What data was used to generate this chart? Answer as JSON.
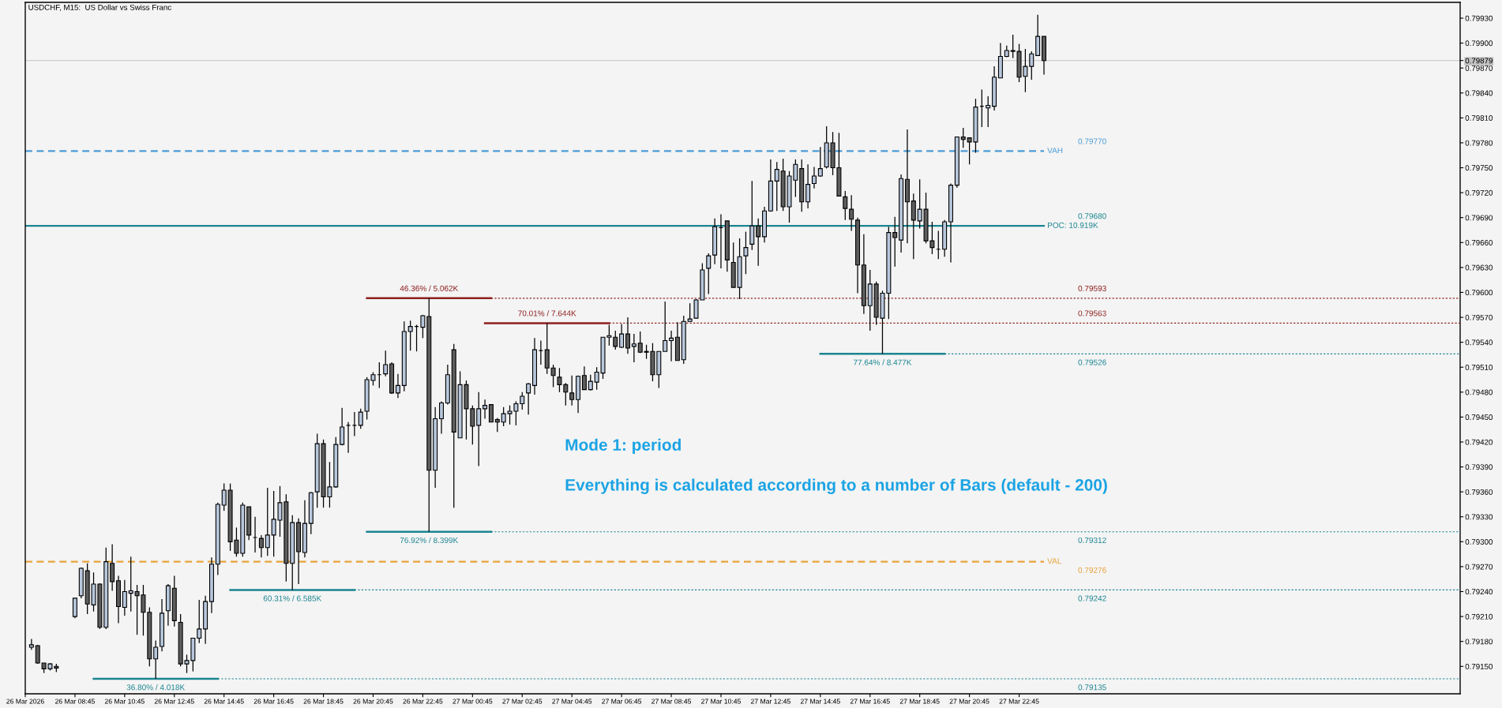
{
  "chart_data": {
    "type": "candlestick",
    "title": "USDCHF, M15:  US Dollar vs Swiss Franc",
    "x": [
      "2026-03-26T07:00",
      "2026-03-26T07:15",
      "2026-03-26T07:30",
      "2026-03-26T07:45",
      "2026-03-26T08:00",
      "2026-03-26T08:45",
      "2026-03-26T09:00",
      "2026-03-26T09:15",
      "2026-03-26T09:30",
      "2026-03-26T09:45",
      "2026-03-26T10:00",
      "2026-03-26T10:15",
      "2026-03-26T10:30",
      "2026-03-26T10:45",
      "2026-03-26T11:00",
      "2026-03-26T11:15",
      "2026-03-26T11:30",
      "2026-03-26T11:45",
      "2026-03-26T12:00",
      "2026-03-26T12:15",
      "2026-03-26T12:30",
      "2026-03-26T12:45",
      "2026-03-26T13:00",
      "2026-03-26T13:15",
      "2026-03-26T13:30",
      "2026-03-26T13:45",
      "2026-03-26T14:00",
      "2026-03-26T14:15",
      "2026-03-26T14:30",
      "2026-03-26T14:45",
      "2026-03-26T15:00",
      "2026-03-26T15:15",
      "2026-03-26T15:30",
      "2026-03-26T15:45",
      "2026-03-26T16:00",
      "2026-03-26T16:15",
      "2026-03-26T16:30",
      "2026-03-26T16:45",
      "2026-03-26T17:00",
      "2026-03-26T17:15",
      "2026-03-26T17:30",
      "2026-03-26T17:45",
      "2026-03-26T18:00",
      "2026-03-26T18:15",
      "2026-03-26T18:30",
      "2026-03-26T18:45",
      "2026-03-26T19:00",
      "2026-03-26T19:15",
      "2026-03-26T19:30",
      "2026-03-26T19:45",
      "2026-03-26T20:00",
      "2026-03-26T20:15",
      "2026-03-26T20:30",
      "2026-03-26T20:45",
      "2026-03-26T21:00",
      "2026-03-26T21:15",
      "2026-03-26T21:30",
      "2026-03-26T21:45",
      "2026-03-26T22:00",
      "2026-03-26T22:15",
      "2026-03-26T22:30",
      "2026-03-26T22:45",
      "2026-03-26T23:00",
      "2026-03-26T23:15",
      "2026-03-26T23:30",
      "2026-03-26T23:45",
      "2026-03-27T00:00",
      "2026-03-27T00:15",
      "2026-03-27T00:30",
      "2026-03-27T00:45",
      "2026-03-27T01:00",
      "2026-03-27T01:15",
      "2026-03-27T01:30",
      "2026-03-27T01:45",
      "2026-03-27T02:00",
      "2026-03-27T02:15",
      "2026-03-27T02:30",
      "2026-03-27T02:45",
      "2026-03-27T03:00",
      "2026-03-27T03:15",
      "2026-03-27T03:30",
      "2026-03-27T03:45",
      "2026-03-27T04:00",
      "2026-03-27T04:15",
      "2026-03-27T04:30",
      "2026-03-27T04:45",
      "2026-03-27T05:00",
      "2026-03-27T05:15",
      "2026-03-27T05:30",
      "2026-03-27T05:45",
      "2026-03-27T06:00",
      "2026-03-27T06:15",
      "2026-03-27T06:30",
      "2026-03-27T06:45",
      "2026-03-27T07:00",
      "2026-03-27T07:15",
      "2026-03-27T07:30",
      "2026-03-27T07:45",
      "2026-03-27T08:00",
      "2026-03-27T08:15",
      "2026-03-27T08:30",
      "2026-03-27T08:45",
      "2026-03-27T09:00",
      "2026-03-27T09:15",
      "2026-03-27T09:30",
      "2026-03-27T09:45",
      "2026-03-27T10:00",
      "2026-03-27T10:15",
      "2026-03-27T10:30",
      "2026-03-27T10:45",
      "2026-03-27T11:00",
      "2026-03-27T11:15",
      "2026-03-27T11:30",
      "2026-03-27T11:45",
      "2026-03-27T12:00",
      "2026-03-27T12:15",
      "2026-03-27T12:30",
      "2026-03-27T12:45",
      "2026-03-27T13:00",
      "2026-03-27T13:15",
      "2026-03-27T13:30",
      "2026-03-27T13:45",
      "2026-03-27T14:00",
      "2026-03-27T14:15",
      "2026-03-27T14:30",
      "2026-03-27T14:45",
      "2026-03-27T15:00",
      "2026-03-27T15:15",
      "2026-03-27T15:30",
      "2026-03-27T15:45",
      "2026-03-27T16:00",
      "2026-03-27T16:15",
      "2026-03-27T16:30",
      "2026-03-27T16:45",
      "2026-03-27T17:00",
      "2026-03-27T17:15",
      "2026-03-27T17:30",
      "2026-03-27T17:45",
      "2026-03-27T18:00",
      "2026-03-27T18:15",
      "2026-03-27T18:30",
      "2026-03-27T18:45",
      "2026-03-27T19:00",
      "2026-03-27T19:15",
      "2026-03-27T19:30",
      "2026-03-27T19:45",
      "2026-03-27T20:00",
      "2026-03-27T20:15",
      "2026-03-27T20:30",
      "2026-03-27T20:45",
      "2026-03-27T21:00",
      "2026-03-27T21:15",
      "2026-03-27T21:30",
      "2026-03-27T21:45",
      "2026-03-27T22:00",
      "2026-03-27T22:15",
      "2026-03-27T22:30",
      "2026-03-27T22:45",
      "2026-03-27T23:00",
      "2026-03-27T23:15",
      "2026-03-27T23:30",
      "2026-03-27T23:45"
    ],
    "ohlc": [
      [
        0.79173,
        0.79183,
        0.7917,
        0.79176
      ],
      [
        0.79175,
        0.79176,
        0.79153,
        0.79154
      ],
      [
        0.79154,
        0.79154,
        0.79142,
        0.79147
      ],
      [
        0.79147,
        0.79154,
        0.79145,
        0.79153
      ],
      [
        0.7915,
        0.79153,
        0.79143,
        0.79148
      ],
      [
        0.7921,
        0.79232,
        0.79208,
        0.79232
      ],
      [
        0.79235,
        0.79269,
        0.79232,
        0.79268
      ],
      [
        0.79265,
        0.79274,
        0.79213,
        0.79225
      ],
      [
        0.79224,
        0.79263,
        0.79216,
        0.79249
      ],
      [
        0.79249,
        0.7925,
        0.79195,
        0.79197
      ],
      [
        0.79197,
        0.79293,
        0.79195,
        0.79276
      ],
      [
        0.79274,
        0.79297,
        0.79241,
        0.79252
      ],
      [
        0.79253,
        0.79259,
        0.79202,
        0.79222
      ],
      [
        0.79221,
        0.79254,
        0.79211,
        0.7924
      ],
      [
        0.79238,
        0.79282,
        0.79216,
        0.79241
      ],
      [
        0.7924,
        0.79248,
        0.79188,
        0.79235
      ],
      [
        0.79236,
        0.79248,
        0.79187,
        0.79215
      ],
      [
        0.79215,
        0.79221,
        0.7915,
        0.79159
      ],
      [
        0.79159,
        0.79181,
        0.79135,
        0.79173
      ],
      [
        0.79174,
        0.79231,
        0.79168,
        0.79214
      ],
      [
        0.79217,
        0.79249,
        0.79199,
        0.79247
      ],
      [
        0.79244,
        0.79259,
        0.79198,
        0.79205
      ],
      [
        0.79203,
        0.79213,
        0.7915,
        0.79153
      ],
      [
        0.79153,
        0.79164,
        0.79142,
        0.79157
      ],
      [
        0.79157,
        0.79184,
        0.79144,
        0.79184
      ],
      [
        0.79184,
        0.7923,
        0.79178,
        0.79195
      ],
      [
        0.79195,
        0.79235,
        0.79177,
        0.79228
      ],
      [
        0.79228,
        0.79281,
        0.79214,
        0.79273
      ],
      [
        0.79273,
        0.79347,
        0.7926,
        0.79345
      ],
      [
        0.79344,
        0.7937,
        0.79337,
        0.79362
      ],
      [
        0.79362,
        0.7937,
        0.79289,
        0.793
      ],
      [
        0.79302,
        0.79317,
        0.79282,
        0.79286
      ],
      [
        0.79286,
        0.79347,
        0.79282,
        0.79344
      ],
      [
        0.79342,
        0.79342,
        0.79302,
        0.79308
      ],
      [
        0.79305,
        0.7933,
        0.79287,
        0.79305
      ],
      [
        0.79304,
        0.79308,
        0.79281,
        0.79293
      ],
      [
        0.79293,
        0.79365,
        0.79283,
        0.79308
      ],
      [
        0.79308,
        0.79361,
        0.79282,
        0.79327
      ],
      [
        0.79326,
        0.79367,
        0.79306,
        0.79347
      ],
      [
        0.79348,
        0.79357,
        0.79252,
        0.79274
      ],
      [
        0.79274,
        0.79332,
        0.79242,
        0.79323
      ],
      [
        0.79323,
        0.79328,
        0.79249,
        0.79288
      ],
      [
        0.79287,
        0.7935,
        0.79281,
        0.79322
      ],
      [
        0.79322,
        0.7936,
        0.79309,
        0.79359
      ],
      [
        0.7936,
        0.7943,
        0.79341,
        0.79418
      ],
      [
        0.79418,
        0.79423,
        0.79341,
        0.79354
      ],
      [
        0.79354,
        0.79396,
        0.79341,
        0.79366
      ],
      [
        0.79366,
        0.79426,
        0.79365,
        0.79417
      ],
      [
        0.79417,
        0.79461,
        0.79416,
        0.79438
      ],
      [
        0.7944,
        0.79444,
        0.79407,
        0.7944
      ],
      [
        0.7944,
        0.79456,
        0.79427,
        0.7944
      ],
      [
        0.7944,
        0.7946,
        0.79436,
        0.79456
      ],
      [
        0.79457,
        0.79498,
        0.79447,
        0.79495
      ],
      [
        0.79494,
        0.79504,
        0.79488,
        0.79501
      ],
      [
        0.79501,
        0.79516,
        0.79485,
        0.79501
      ],
      [
        0.79502,
        0.7953,
        0.79499,
        0.79513
      ],
      [
        0.79514,
        0.79516,
        0.79478,
        0.79479
      ],
      [
        0.79479,
        0.79502,
        0.79473,
        0.79488
      ],
      [
        0.79488,
        0.79565,
        0.79481,
        0.79553
      ],
      [
        0.79553,
        0.79566,
        0.7953,
        0.79559
      ],
      [
        0.79559,
        0.79561,
        0.79529,
        0.79559
      ],
      [
        0.79558,
        0.79573,
        0.79545,
        0.79572
      ],
      [
        0.79571,
        0.79593,
        0.79312,
        0.79386
      ],
      [
        0.79386,
        0.79462,
        0.79365,
        0.79448
      ],
      [
        0.79448,
        0.79469,
        0.7943,
        0.79467
      ],
      [
        0.79467,
        0.79513,
        0.79465,
        0.79501
      ],
      [
        0.79531,
        0.79538,
        0.79341,
        0.79432
      ],
      [
        0.79425,
        0.79505,
        0.79425,
        0.79489
      ],
      [
        0.79489,
        0.79494,
        0.79423,
        0.7946
      ],
      [
        0.7946,
        0.79464,
        0.79417,
        0.79439
      ],
      [
        0.7944,
        0.7948,
        0.79391,
        0.7946
      ],
      [
        0.7946,
        0.79471,
        0.79448,
        0.79464
      ],
      [
        0.79465,
        0.79465,
        0.79444,
        0.79444
      ],
      [
        0.79447,
        0.79449,
        0.79432,
        0.79444
      ],
      [
        0.79444,
        0.79462,
        0.79439,
        0.79454
      ],
      [
        0.79454,
        0.79464,
        0.79441,
        0.79457
      ],
      [
        0.79457,
        0.79469,
        0.7944,
        0.79466
      ],
      [
        0.79466,
        0.7948,
        0.79459,
        0.79475
      ],
      [
        0.79479,
        0.79491,
        0.79453,
        0.7949
      ],
      [
        0.79488,
        0.79545,
        0.79477,
        0.79531
      ],
      [
        0.7953,
        0.79542,
        0.79513,
        0.7953
      ],
      [
        0.79531,
        0.79563,
        0.79502,
        0.79509
      ],
      [
        0.79509,
        0.79513,
        0.79486,
        0.795
      ],
      [
        0.79498,
        0.79509,
        0.7948,
        0.79489
      ],
      [
        0.79489,
        0.79491,
        0.79464,
        0.7948
      ],
      [
        0.79479,
        0.795,
        0.79464,
        0.79471
      ],
      [
        0.79471,
        0.795,
        0.79455,
        0.79499
      ],
      [
        0.795,
        0.79511,
        0.79483,
        0.79483
      ],
      [
        0.79483,
        0.79501,
        0.79482,
        0.79493
      ],
      [
        0.79492,
        0.7951,
        0.79483,
        0.79504
      ],
      [
        0.79503,
        0.79546,
        0.79496,
        0.79546
      ],
      [
        0.79546,
        0.79561,
        0.79536,
        0.79548
      ],
      [
        0.79546,
        0.79554,
        0.79531,
        0.79535
      ],
      [
        0.79534,
        0.79562,
        0.79533,
        0.7955
      ],
      [
        0.7955,
        0.7957,
        0.79526,
        0.79533
      ],
      [
        0.79535,
        0.7955,
        0.79516,
        0.79538
      ],
      [
        0.79539,
        0.79553,
        0.79527,
        0.79528
      ],
      [
        0.79528,
        0.79537,
        0.7952,
        0.79529
      ],
      [
        0.79529,
        0.79539,
        0.79493,
        0.79501
      ],
      [
        0.79501,
        0.79529,
        0.79485,
        0.79529
      ],
      [
        0.79529,
        0.79589,
        0.79529,
        0.79542
      ],
      [
        0.79542,
        0.79554,
        0.79517,
        0.79545
      ],
      [
        0.79546,
        0.79564,
        0.79518,
        0.79518
      ],
      [
        0.79519,
        0.79572,
        0.79514,
        0.79565
      ],
      [
        0.79565,
        0.79587,
        0.79565,
        0.79568
      ],
      [
        0.79569,
        0.79592,
        0.79569,
        0.79591
      ],
      [
        0.79591,
        0.79635,
        0.79591,
        0.79627
      ],
      [
        0.79629,
        0.79647,
        0.79598,
        0.79644
      ],
      [
        0.79645,
        0.79689,
        0.79634,
        0.79679
      ],
      [
        0.79678,
        0.79694,
        0.79629,
        0.79678
      ],
      [
        0.79686,
        0.79686,
        0.79625,
        0.79639
      ],
      [
        0.79636,
        0.7966,
        0.79606,
        0.79606
      ],
      [
        0.79606,
        0.79665,
        0.79592,
        0.79643
      ],
      [
        0.79644,
        0.79673,
        0.79622,
        0.79654
      ],
      [
        0.79658,
        0.79734,
        0.79651,
        0.7968
      ],
      [
        0.7968,
        0.79689,
        0.79632,
        0.79667
      ],
      [
        0.79667,
        0.79703,
        0.7966,
        0.79698
      ],
      [
        0.79698,
        0.7976,
        0.79697,
        0.79734
      ],
      [
        0.79734,
        0.79757,
        0.79698,
        0.79748
      ],
      [
        0.79746,
        0.79761,
        0.79698,
        0.79703
      ],
      [
        0.79703,
        0.79746,
        0.79684,
        0.7974
      ],
      [
        0.79735,
        0.7976,
        0.79715,
        0.79754
      ],
      [
        0.79749,
        0.7976,
        0.79697,
        0.79709
      ],
      [
        0.79709,
        0.79754,
        0.79701,
        0.7973
      ],
      [
        0.79731,
        0.79751,
        0.79725,
        0.7974
      ],
      [
        0.7974,
        0.79775,
        0.79739,
        0.79749
      ],
      [
        0.79751,
        0.798,
        0.79749,
        0.7978
      ],
      [
        0.7978,
        0.79793,
        0.79741,
        0.7975
      ],
      [
        0.7975,
        0.79792,
        0.79716,
        0.79716
      ],
      [
        0.79715,
        0.79722,
        0.79687,
        0.79701
      ],
      [
        0.797,
        0.79717,
        0.79674,
        0.79688
      ],
      [
        0.79687,
        0.7969,
        0.79599,
        0.79633
      ],
      [
        0.79633,
        0.7967,
        0.79574,
        0.79584
      ],
      [
        0.79584,
        0.79627,
        0.79554,
        0.7961
      ],
      [
        0.7961,
        0.79613,
        0.79561,
        0.7957
      ],
      [
        0.79569,
        0.79602,
        0.79526,
        0.79599
      ],
      [
        0.79599,
        0.79679,
        0.79568,
        0.79672
      ],
      [
        0.79672,
        0.79691,
        0.79631,
        0.79666
      ],
      [
        0.79663,
        0.79742,
        0.79648,
        0.79737
      ],
      [
        0.79736,
        0.79796,
        0.79659,
        0.79709
      ],
      [
        0.7971,
        0.79719,
        0.7964,
        0.79687
      ],
      [
        0.79686,
        0.79736,
        0.79677,
        0.797
      ],
      [
        0.797,
        0.7972,
        0.79659,
        0.79662
      ],
      [
        0.79662,
        0.79685,
        0.79646,
        0.79654
      ],
      [
        0.79652,
        0.79674,
        0.7964,
        0.79652
      ],
      [
        0.79652,
        0.79687,
        0.79643,
        0.79685
      ],
      [
        0.79685,
        0.79731,
        0.79636,
        0.79729
      ],
      [
        0.79729,
        0.79787,
        0.79726,
        0.79787
      ],
      [
        0.79787,
        0.79798,
        0.79774,
        0.79784
      ],
      [
        0.79786,
        0.79786,
        0.79754,
        0.79781
      ],
      [
        0.79781,
        0.79833,
        0.79768,
        0.79823
      ],
      [
        0.79824,
        0.79844,
        0.79799,
        0.79824
      ],
      [
        0.79822,
        0.79836,
        0.79799,
        0.79825
      ],
      [
        0.79824,
        0.79872,
        0.79819,
        0.79859
      ],
      [
        0.79858,
        0.799,
        0.79858,
        0.79884
      ],
      [
        0.79884,
        0.79897,
        0.79883,
        0.79891
      ],
      [
        0.7989,
        0.7991,
        0.79882,
        0.79891
      ],
      [
        0.7989,
        0.79899,
        0.79853,
        0.79859
      ],
      [
        0.7986,
        0.79893,
        0.79841,
        0.79872
      ],
      [
        0.79872,
        0.7989,
        0.79856,
        0.79887
      ],
      [
        0.79885,
        0.79934,
        0.79885,
        0.79908
      ],
      [
        0.79908,
        0.79908,
        0.79862,
        0.79879
      ]
    ],
    "colors": [
      "#b8c7dc",
      "#5e5e5e",
      "#5e5e5e",
      "#b8c7dc",
      "#5e5e5e",
      "#b8c7dc",
      "#b8c7dc",
      "#5e5e5e",
      "#b8c7dc",
      "#5e5e5e",
      "#b8c7dc",
      "#5e5e5e",
      "#5e5e5e",
      "#b8c7dc",
      "#b8c7dc",
      "#5e5e5e",
      "#5e5e5e",
      "#5e5e5e",
      "#b8c7dc",
      "#b8c7dc",
      "#b8c7dc",
      "#5e5e5e",
      "#5e5e5e",
      "#b8c7dc",
      "#b8c7dc",
      "#b8c7dc",
      "#b8c7dc",
      "#b8c7dc",
      "#b8c7dc",
      "#b8c7dc",
      "#5e5e5e",
      "#5e5e5e",
      "#b8c7dc",
      "#5e5e5e",
      "#000000",
      "#5e5e5e",
      "#b8c7dc",
      "#b8c7dc",
      "#b8c7dc",
      "#5e5e5e",
      "#b8c7dc",
      "#5e5e5e",
      "#b8c7dc",
      "#b8c7dc",
      "#b8c7dc",
      "#5e5e5e",
      "#b8c7dc",
      "#b8c7dc",
      "#b8c7dc",
      "#000000",
      "#000000",
      "#b8c7dc",
      "#b8c7dc",
      "#b8c7dc",
      "#000000",
      "#b8c7dc",
      "#5e5e5e",
      "#b8c7dc",
      "#b8c7dc",
      "#b8c7dc",
      "#000000",
      "#b8c7dc",
      "#5e5e5e",
      "#b8c7dc",
      "#b8c7dc",
      "#b8c7dc",
      "#5e5e5e",
      "#b8c7dc",
      "#5e5e5e",
      "#5e5e5e",
      "#b8c7dc",
      "#b8c7dc",
      "#5e5e5e",
      "#5e5e5e",
      "#b8c7dc",
      "#b8c7dc",
      "#b8c7dc",
      "#b8c7dc",
      "#b8c7dc",
      "#b8c7dc",
      "#000000",
      "#5e5e5e",
      "#5e5e5e",
      "#5e5e5e",
      "#5e5e5e",
      "#5e5e5e",
      "#b8c7dc",
      "#5e5e5e",
      "#b8c7dc",
      "#b8c7dc",
      "#b8c7dc",
      "#b8c7dc",
      "#5e5e5e",
      "#b8c7dc",
      "#5e5e5e",
      "#b8c7dc",
      "#5e5e5e",
      "#b8c7dc",
      "#5e5e5e",
      "#b8c7dc",
      "#b8c7dc",
      "#b8c7dc",
      "#5e5e5e",
      "#b8c7dc",
      "#b8c7dc",
      "#b8c7dc",
      "#b8c7dc",
      "#b8c7dc",
      "#b8c7dc",
      "#000000",
      "#5e5e5e",
      "#5e5e5e",
      "#b8c7dc",
      "#b8c7dc",
      "#b8c7dc",
      "#5e5e5e",
      "#b8c7dc",
      "#b8c7dc",
      "#b8c7dc",
      "#5e5e5e",
      "#b8c7dc",
      "#b8c7dc",
      "#5e5e5e",
      "#b8c7dc",
      "#b8c7dc",
      "#b8c7dc",
      "#b8c7dc",
      "#5e5e5e",
      "#5e5e5e",
      "#5e5e5e",
      "#5e5e5e",
      "#5e5e5e",
      "#5e5e5e",
      "#b8c7dc",
      "#5e5e5e",
      "#b8c7dc",
      "#b8c7dc",
      "#5e5e5e",
      "#b8c7dc",
      "#5e5e5e",
      "#5e5e5e",
      "#b8c7dc",
      "#5e5e5e",
      "#5e5e5e",
      "#000000",
      "#b8c7dc",
      "#b8c7dc",
      "#b8c7dc",
      "#5e5e5e",
      "#5e5e5e",
      "#b8c7dc",
      "#000000",
      "#b8c7dc",
      "#b8c7dc",
      "#b8c7dc",
      "#b8c7dc",
      "#b8c7dc",
      "#5e5e5e",
      "#b8c7dc",
      "#b8c7dc",
      "#b8c7dc",
      "#5e5e5e"
    ],
    "series": [
      {
        "type": "line",
        "x": [
          "2026-03-26T09:30",
          "2026-03-26T14:30"
        ],
        "values": [
          0.79135,
          0.79135
        ],
        "color": "#1b8591"
      },
      {
        "type": "line",
        "x": [
          "2026-03-26T14:30",
          "2026-03-28T16:30"
        ],
        "values": [
          0.79135,
          0.79135
        ],
        "color": "#1b8591",
        "line_style": "dotted"
      },
      {
        "type": "line",
        "x": [
          "2026-03-26T15:00",
          "2026-03-26T20:00"
        ],
        "values": [
          0.79242,
          0.79242
        ],
        "color": "#1b8591"
      },
      {
        "type": "line",
        "x": [
          "2026-03-26T20:00",
          "2026-03-28T16:30"
        ],
        "values": [
          0.79242,
          0.79242
        ],
        "color": "#1b8591",
        "line_style": "dotted"
      },
      {
        "type": "line",
        "x": [
          "2026-03-26T20:30",
          "2026-03-27T01:30"
        ],
        "values": [
          0.79593,
          0.79593
        ],
        "color": "#8e1f1f"
      },
      {
        "type": "line",
        "x": [
          "2026-03-27T01:30",
          "2026-03-28T16:30"
        ],
        "values": [
          0.79593,
          0.79593
        ],
        "color": "#8e1f1f",
        "line_style": "dotted"
      },
      {
        "type": "line",
        "x": [
          "2026-03-26T20:30",
          "2026-03-27T01:30"
        ],
        "values": [
          0.79312,
          0.79312
        ],
        "color": "#1b8591"
      },
      {
        "type": "line",
        "x": [
          "2026-03-27T01:30",
          "2026-03-28T16:30"
        ],
        "values": [
          0.79312,
          0.79312
        ],
        "color": "#1b8591",
        "line_style": "dotted"
      },
      {
        "type": "line",
        "x": [
          "2026-03-27T01:15",
          "2026-03-27T06:15"
        ],
        "values": [
          0.79563,
          0.79563
        ],
        "color": "#8e1f1f"
      },
      {
        "type": "line",
        "x": [
          "2026-03-27T06:15",
          "2026-03-28T16:30"
        ],
        "values": [
          0.79563,
          0.79563
        ],
        "color": "#8e1f1f",
        "line_style": "dotted"
      },
      {
        "type": "line",
        "x": [
          "2026-03-27T14:45",
          "2026-03-27T19:45"
        ],
        "values": [
          0.79526,
          0.79526
        ],
        "color": "#1b8591"
      },
      {
        "type": "line",
        "x": [
          "2026-03-27T19:45",
          "2026-03-28T16:30"
        ],
        "values": [
          0.79526,
          0.79526
        ],
        "color": "#1b8591",
        "line_style": "dotted"
      }
    ],
    "ref_lines": [
      {
        "axis": "y",
        "value": 0.7977,
        "label": "0.79770",
        "color": "#4b9bd6",
        "line_style": "dashed"
      },
      {
        "axis": "y",
        "value": 0.7968,
        "label": "0.79680",
        "color": "#1b8591",
        "line_style": "solid"
      },
      {
        "axis": "y",
        "value": 0.79276,
        "label": "0.79276",
        "color": "#e8a33a",
        "line_style": "dashed"
      },
      {
        "axis": "y",
        "value": 0.79879,
        "color": "#c3c3c3",
        "line_style": "solid"
      }
    ],
    "annotations": [
      "Mode 1: period",
      "Everything is calculated according to a number of Bars (default - 200)",
      {
        "text": "VAH",
        "x": "2026-03-27T23:45",
        "y": 0.7977
      },
      {
        "text": "POC: 10.919K",
        "x": "2026-03-27T23:45",
        "y": 0.7968
      },
      {
        "text": "VAL",
        "x": "2026-03-27T23:45",
        "y": 0.79276
      },
      {
        "text": "46.36% / 5.062K",
        "x": "2026-03-26T23:00",
        "y": 0.79593
      },
      {
        "text": "70.01% / 7.644K",
        "x": "2026-03-27T03:45",
        "y": 0.79563
      },
      {
        "text": "77.64% / 8.477K",
        "x": "2026-03-27T17:15",
        "y": 0.79526
      },
      {
        "text": "76.92% / 8.399K",
        "x": "2026-03-26T23:00",
        "y": 0.79312
      },
      {
        "text": "60.31% / 6.585K",
        "x": "2026-03-26T17:30",
        "y": 0.79242
      },
      {
        "text": "36.80% / 4.018K",
        "x": "2026-03-26T12:00",
        "y": 0.79135
      },
      {
        "text": "0.79593",
        "y": 0.79593
      },
      {
        "text": "0.79563",
        "y": 0.79563
      },
      {
        "text": "0.79526",
        "y": 0.79526
      },
      {
        "text": "0.79312",
        "y": 0.79312
      },
      {
        "text": "0.79242",
        "y": 0.79242
      },
      {
        "text": "0.79135",
        "y": 0.79135
      }
    ],
    "xlim": [
      "2026-03-26T06:45",
      "2026-03-28T16:30"
    ],
    "ylim": [
      0.79117,
      0.79949
    ],
    "xticks": [
      {
        "value": "2026-03-26T06:45",
        "label": "26 Mar 2026"
      },
      {
        "value": "2026-03-26T08:45",
        "label": "26 Mar 08:45"
      },
      {
        "value": "2026-03-26T10:45",
        "label": "26 Mar 10:45"
      },
      {
        "value": "2026-03-26T12:45",
        "label": "26 Mar 12:45"
      },
      {
        "value": "2026-03-26T14:45",
        "label": "26 Mar 14:45"
      },
      {
        "value": "2026-03-26T16:45",
        "label": "26 Mar 16:45"
      },
      {
        "value": "2026-03-26T18:45",
        "label": "26 Mar 18:45"
      },
      {
        "value": "2026-03-26T20:45",
        "label": "26 Mar 20:45"
      },
      {
        "value": "2026-03-26T22:45",
        "label": "26 Mar 22:45"
      },
      {
        "value": "2026-03-27T00:45",
        "label": "27 Mar 00:45"
      },
      {
        "value": "2026-03-27T02:45",
        "label": "27 Mar 02:45"
      },
      {
        "value": "2026-03-27T04:45",
        "label": "27 Mar 04:45"
      },
      {
        "value": "2026-03-27T06:45",
        "label": "27 Mar 06:45"
      },
      {
        "value": "2026-03-27T08:45",
        "label": "27 Mar 08:45"
      },
      {
        "value": "2026-03-27T10:45",
        "label": "27 Mar 10:45"
      },
      {
        "value": "2026-03-27T12:45",
        "label": "27 Mar 12:45"
      },
      {
        "value": "2026-03-27T14:45",
        "label": "27 Mar 14:45"
      },
      {
        "value": "2026-03-27T16:45",
        "label": "27 Mar 16:45"
      },
      {
        "value": "2026-03-27T18:45",
        "label": "27 Mar 18:45"
      },
      {
        "value": "2026-03-27T20:45",
        "label": "27 Mar 20:45"
      },
      {
        "value": "2026-03-27T22:45",
        "label": "27 Mar 22:45"
      }
    ],
    "yticks": [
      {
        "value": 0.7915,
        "label": "0.79150"
      },
      {
        "value": 0.7918,
        "label": "0.79180"
      },
      {
        "value": 0.7921,
        "label": "0.79210"
      },
      {
        "value": 0.7924,
        "label": "0.79240"
      },
      {
        "value": 0.7927,
        "label": "0.79270"
      },
      {
        "value": 0.793,
        "label": "0.79300"
      },
      {
        "value": 0.7933,
        "label": "0.79330"
      },
      {
        "value": 0.7936,
        "label": "0.79360"
      },
      {
        "value": 0.7939,
        "label": "0.79390"
      },
      {
        "value": 0.7942,
        "label": "0.79420"
      },
      {
        "value": 0.7945,
        "label": "0.79450"
      },
      {
        "value": 0.7948,
        "label": "0.79480"
      },
      {
        "value": 0.7951,
        "label": "0.79510"
      },
      {
        "value": 0.7954,
        "label": "0.79540"
      },
      {
        "value": 0.7957,
        "label": "0.79570"
      },
      {
        "value": 0.796,
        "label": "0.79600"
      },
      {
        "value": 0.7963,
        "label": "0.79630"
      },
      {
        "value": 0.7966,
        "label": "0.79660"
      },
      {
        "value": 0.7969,
        "label": "0.79690"
      },
      {
        "value": 0.7972,
        "label": "0.79720"
      },
      {
        "value": 0.7975,
        "label": "0.79750"
      },
      {
        "value": 0.7978,
        "label": "0.79780"
      },
      {
        "value": 0.7981,
        "label": "0.79810"
      },
      {
        "value": 0.7984,
        "label": "0.79840"
      },
      {
        "value": 0.7987,
        "label": "0.79870"
      },
      {
        "value": 0.79879,
        "label": "0.79879"
      },
      {
        "value": 0.799,
        "label": "0.79900"
      },
      {
        "value": 0.7993,
        "label": "0.79930"
      }
    ]
  }
}
